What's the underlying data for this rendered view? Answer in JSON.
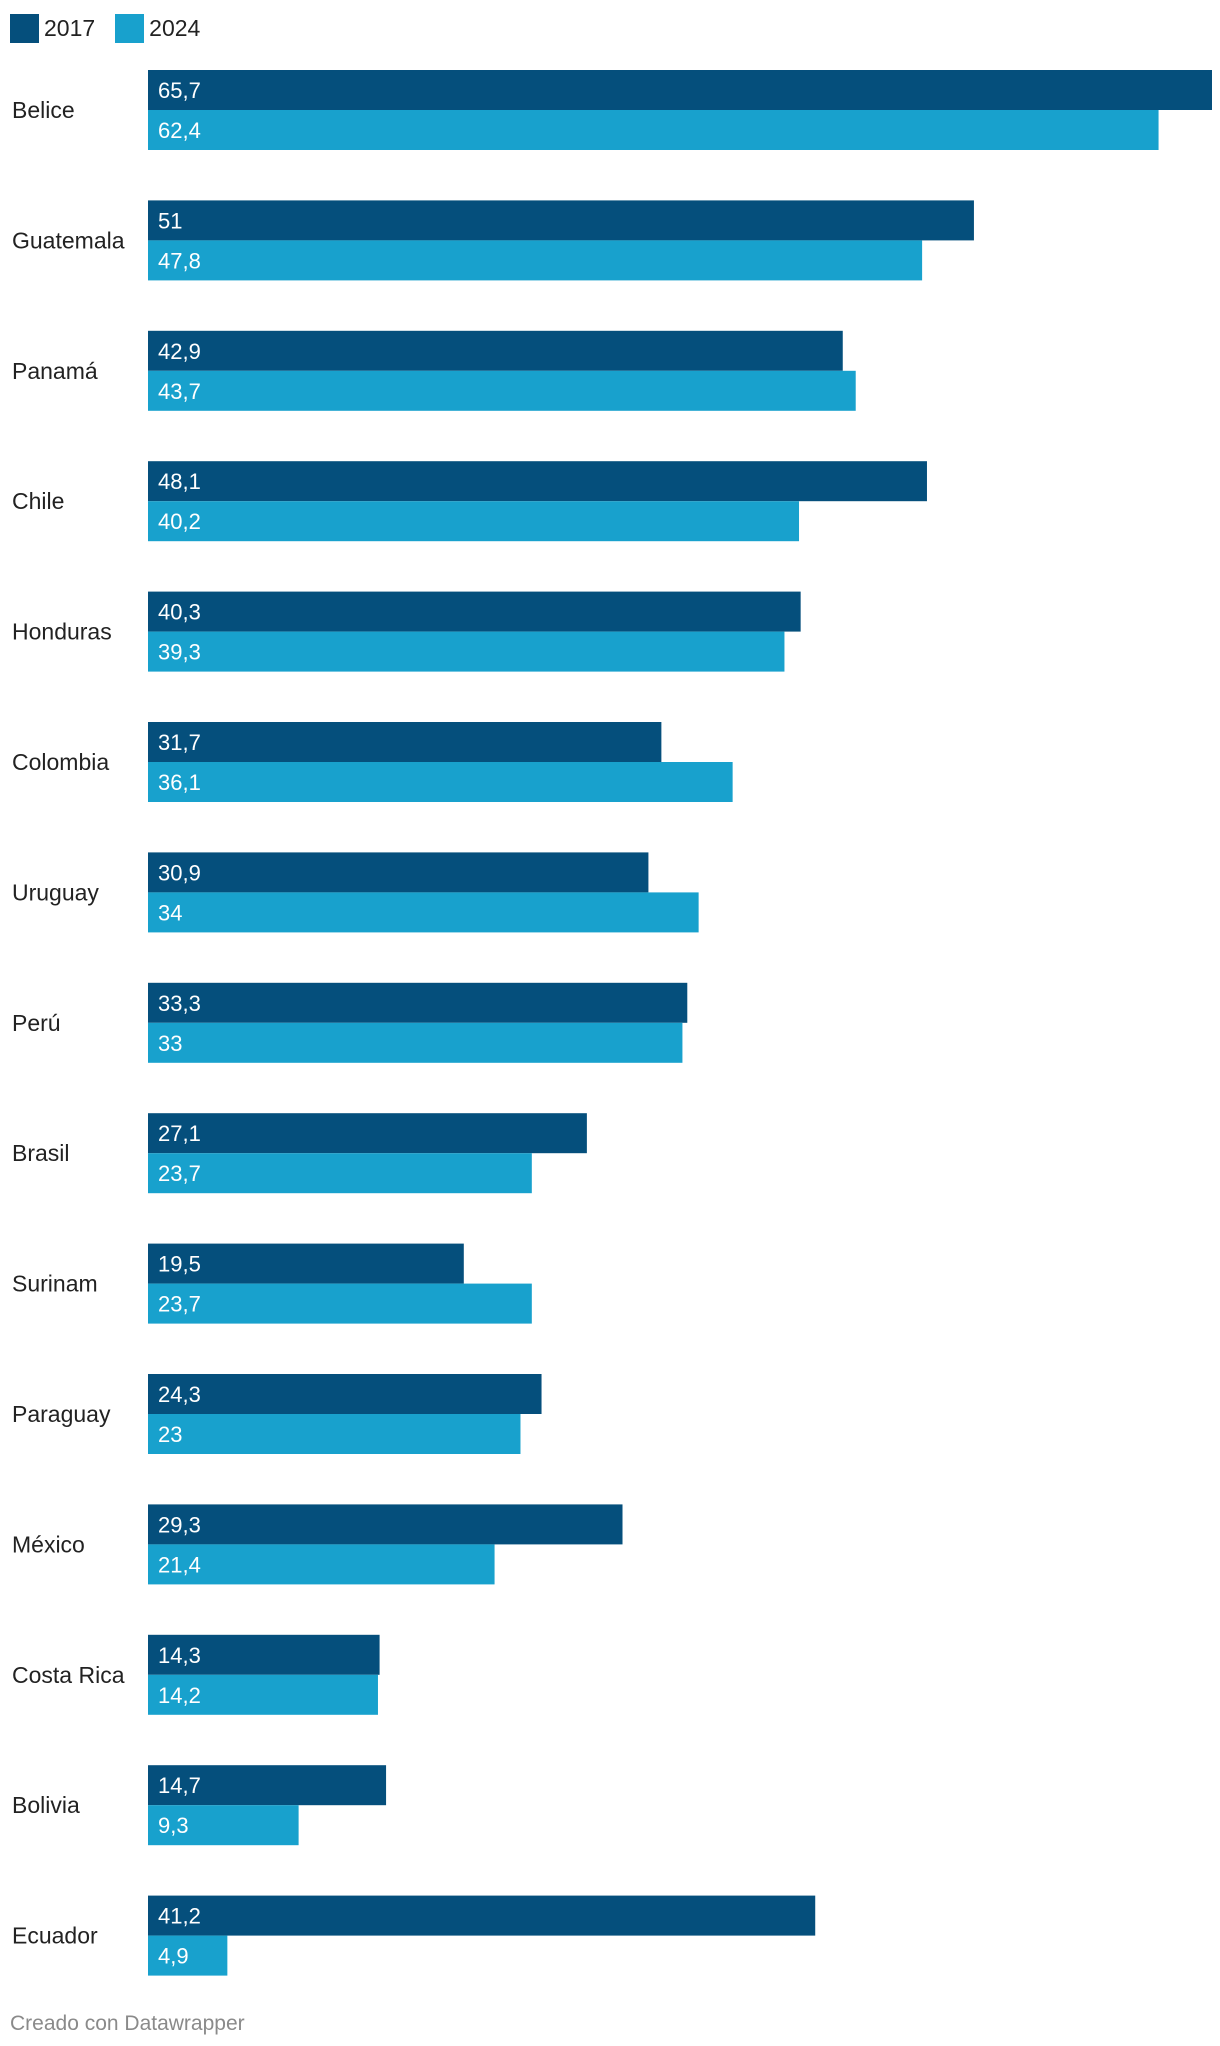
{
  "chart_data": {
    "type": "bar",
    "orientation": "horizontal",
    "grouped": true,
    "categories": [
      "Belice",
      "Guatemala",
      "Panamá",
      "Chile",
      "Honduras",
      "Colombia",
      "Uruguay",
      "Perú",
      "Brasil",
      "Surinam",
      "Paraguay",
      "México",
      "Costa Rica",
      "Bolivia",
      "Ecuador"
    ],
    "series": [
      {
        "name": "2017",
        "color": "#054f7c",
        "values": [
          65.7,
          51,
          42.9,
          48.1,
          40.3,
          31.7,
          30.9,
          33.3,
          27.1,
          19.5,
          24.3,
          29.3,
          14.3,
          14.7,
          41.2
        ],
        "labels": [
          "65,7",
          "51",
          "42,9",
          "48,1",
          "40,3",
          "31,7",
          "30,9",
          "33,3",
          "27,1",
          "19,5",
          "24,3",
          "29,3",
          "14,3",
          "14,7",
          "41,2"
        ]
      },
      {
        "name": "2024",
        "color": "#18a1cd",
        "values": [
          62.4,
          47.8,
          43.7,
          40.2,
          39.3,
          36.1,
          34,
          33,
          23.7,
          23.7,
          23,
          21.4,
          14.2,
          9.3,
          4.9
        ],
        "labels": [
          "62,4",
          "47,8",
          "43,7",
          "40,2",
          "39,3",
          "36,1",
          "34",
          "33",
          "23,7",
          "23,7",
          "23",
          "21,4",
          "14,2",
          "9,3",
          "4,9"
        ]
      }
    ],
    "xlim": [
      0,
      65.7
    ],
    "grid": false,
    "legend_position": "top-left",
    "data_labels": "inside-start"
  },
  "footer": {
    "credit": "Creado con Datawrapper"
  }
}
